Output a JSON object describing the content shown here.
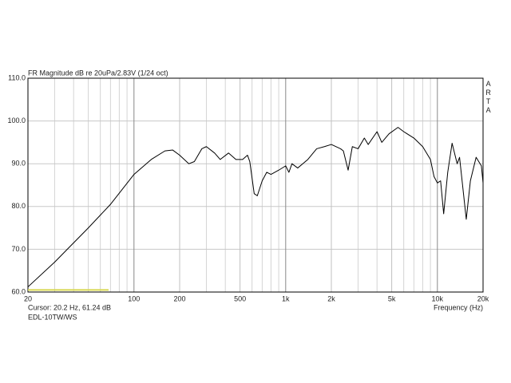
{
  "chart_data": {
    "type": "line",
    "title": "FR Magnitude dB re 20uPa/2.83V (1/24 oct)",
    "brand": "ARTA",
    "cursor": "Cursor: 20.2 Hz, 61.24 dB",
    "subtitle": "EDL-10TW/WS",
    "x_label": "Frequency (Hz)",
    "log_x": true,
    "grid": true,
    "xlim": [
      20,
      20000
    ],
    "ylim": [
      60,
      110
    ],
    "xticks": [
      20,
      100,
      200,
      500,
      {
        "value": 1000,
        "label": "1k"
      },
      {
        "value": 2000,
        "label": "2k"
      },
      {
        "value": 5000,
        "label": "5k"
      },
      {
        "value": 10000,
        "label": "10k"
      },
      {
        "value": 20000,
        "label": "20k"
      }
    ],
    "xminor": [
      30,
      40,
      50,
      60,
      70,
      80,
      90,
      300,
      400,
      600,
      700,
      800,
      900,
      3000,
      4000,
      6000,
      7000,
      8000,
      9000
    ],
    "yticks": [
      {
        "value": 60,
        "label": "60.0"
      },
      {
        "value": 70,
        "label": "70.0"
      },
      {
        "value": 80,
        "label": "80.0"
      },
      {
        "value": 90,
        "label": "90.0"
      },
      {
        "value": 100,
        "label": "100.0"
      },
      {
        "value": 110,
        "label": "110.0"
      }
    ],
    "cursor_band": {
      "x": [
        20,
        68
      ],
      "y": 60.5,
      "color": "#d8d850"
    },
    "series": [
      {
        "name": "EDL-10TW/WS",
        "color": "#000000",
        "x": [
          20,
          30,
          50,
          70,
          100,
          130,
          160,
          180,
          200,
          230,
          250,
          280,
          300,
          340,
          370,
          420,
          470,
          520,
          560,
          580,
          620,
          650,
          700,
          750,
          800,
          900,
          1000,
          1050,
          1100,
          1200,
          1400,
          1600,
          1800,
          2000,
          2300,
          2400,
          2580,
          2750,
          3000,
          3300,
          3500,
          4000,
          4300,
          4800,
          5500,
          6000,
          7000,
          8000,
          9000,
          9500,
          10000,
          10500,
          11000,
          11700,
          12500,
          13500,
          14000,
          15500,
          16500,
          18000,
          19500,
          20000
        ],
        "values": [
          61.2,
          67,
          75,
          80.5,
          87.5,
          91,
          93,
          93.2,
          92,
          90,
          90.5,
          93.5,
          94,
          92.5,
          91,
          92.5,
          91,
          91,
          92,
          90.5,
          83,
          82.5,
          86,
          88,
          87.5,
          88.5,
          89.5,
          88,
          90,
          89,
          91,
          93.5,
          94,
          94.5,
          93.5,
          93,
          88.5,
          94,
          93.5,
          96,
          94.5,
          97.5,
          95,
          97,
          98.5,
          97.5,
          96,
          94,
          91,
          87,
          85.5,
          86,
          78.3,
          88,
          94.8,
          90,
          91.5,
          77,
          86,
          91.5,
          89.5,
          85.5
        ]
      }
    ]
  }
}
